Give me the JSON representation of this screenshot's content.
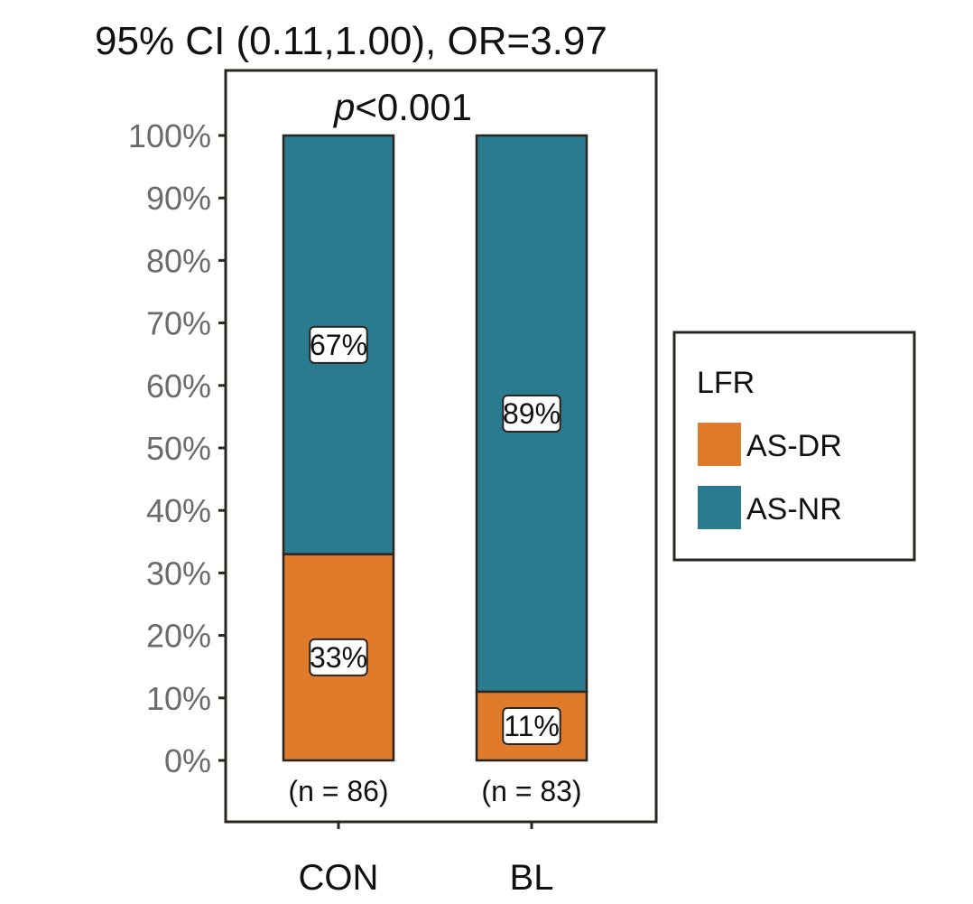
{
  "chart_data": {
    "type": "bar",
    "stacked": true,
    "percent_scale": true,
    "title": "95% CI (0.11,1.00), OR=3.97",
    "subtitle_italic": "p",
    "subtitle_rest": "<0.001",
    "categories": [
      "CON",
      "BL"
    ],
    "counts": [
      "(n = 86)",
      "(n = 83)"
    ],
    "ylim": [
      0,
      100
    ],
    "yticks": [
      0,
      10,
      20,
      30,
      40,
      50,
      60,
      70,
      80,
      90,
      100
    ],
    "ytick_labels": [
      "0%",
      "10%",
      "20%",
      "30%",
      "40%",
      "50%",
      "60%",
      "70%",
      "80%",
      "90%",
      "100%"
    ],
    "series": [
      {
        "name": "AS-DR",
        "color": "#e07b2c",
        "values": [
          33,
          11
        ],
        "labels": [
          "33%",
          "11%"
        ]
      },
      {
        "name": "AS-NR",
        "color": "#2a7a90",
        "values": [
          67,
          89
        ],
        "labels": [
          "67%",
          "89%"
        ]
      }
    ],
    "legend": {
      "title": "LFR",
      "position": "right"
    },
    "grid": false
  }
}
